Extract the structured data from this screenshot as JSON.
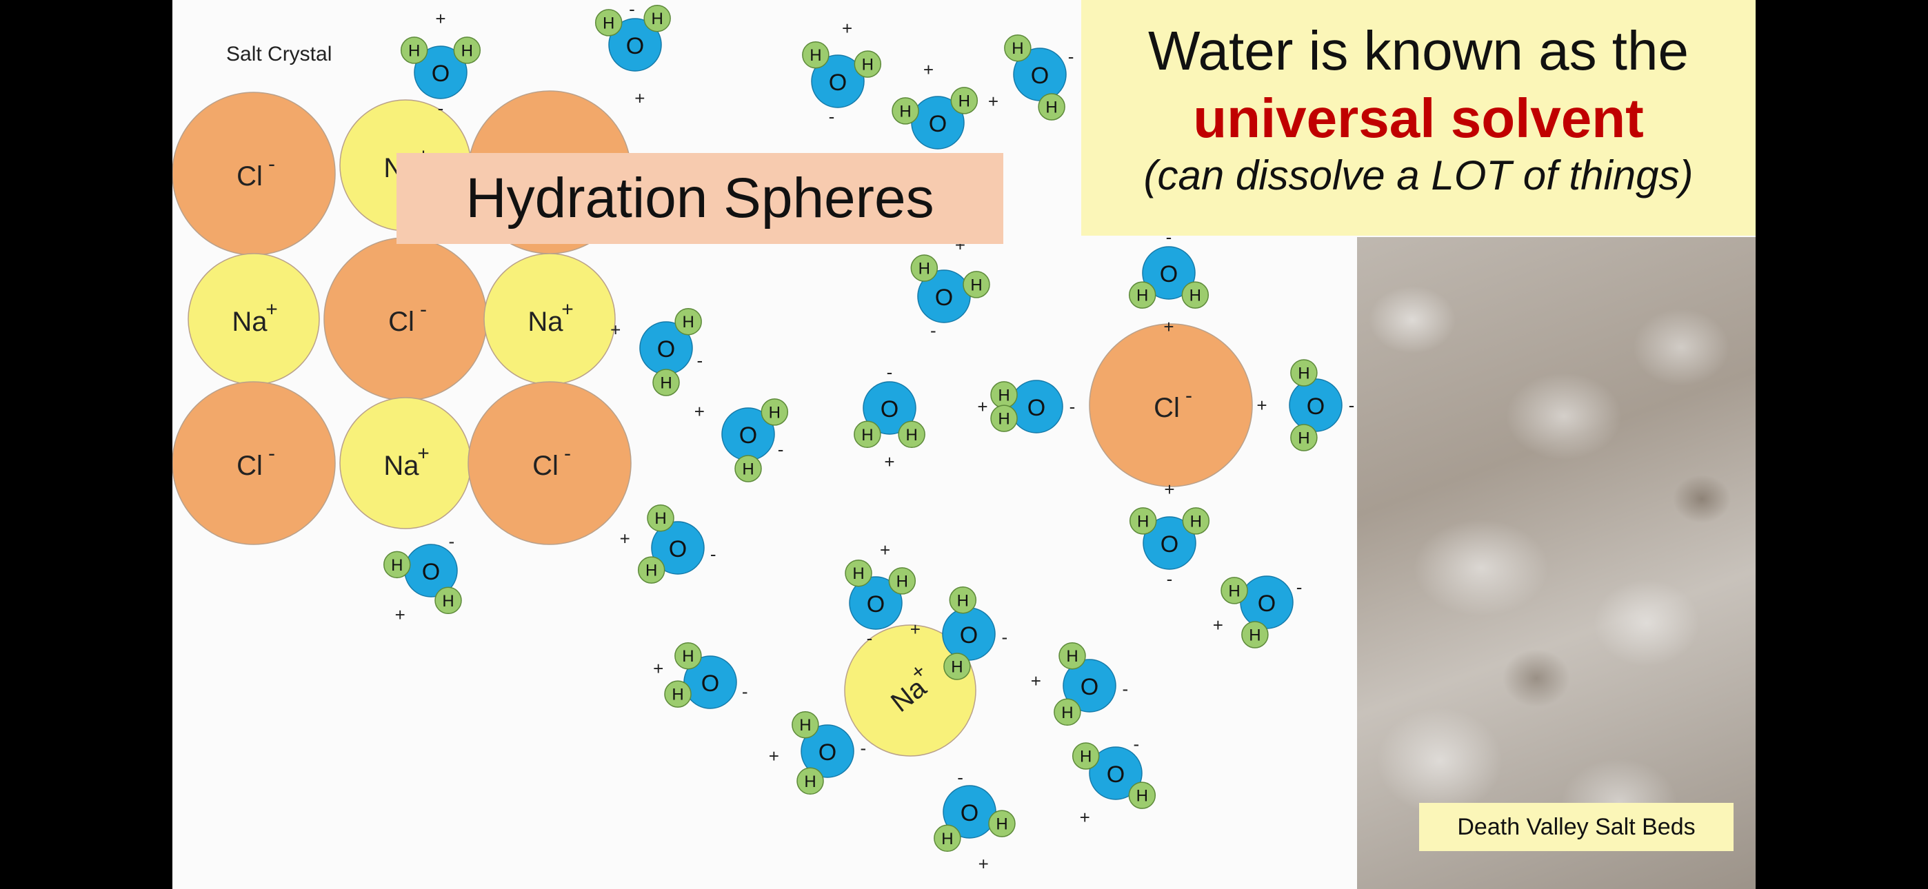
{
  "salt_crystal": {
    "label": "Salt Crystal",
    "ions": [
      {
        "ion": "Cl",
        "charge": "-"
      },
      {
        "ion": "Na",
        "charge": "+"
      },
      {
        "ion": "Cl",
        "charge": "-"
      },
      {
        "ion": "Na",
        "charge": "+"
      },
      {
        "ion": "Cl",
        "charge": "-"
      },
      {
        "ion": "Na",
        "charge": "+"
      },
      {
        "ion": "Cl",
        "charge": "-"
      },
      {
        "ion": "Na",
        "charge": "+"
      },
      {
        "ion": "Cl",
        "charge": "-"
      }
    ]
  },
  "hydration_title": "Hydration Spheres",
  "water_panel": {
    "line1": "Water is known as the",
    "line2": "universal solvent",
    "line3": "(can dissolve a LOT of things)"
  },
  "photo_caption": "Death Valley Salt Beds",
  "hydrated_ions": [
    {
      "ion": "Cl",
      "charge": "-"
    },
    {
      "ion": "Na",
      "charge": "+"
    }
  ],
  "atom_labels": {
    "oxygen": "O",
    "hydrogen": "H",
    "partial_plus": "+",
    "partial_minus": "-"
  },
  "colors": {
    "chloride": "#f2a86a",
    "sodium": "#f8f17a",
    "oxygen": "#1ea6df",
    "hydrogen": "#9ccc6e",
    "title_box": "#f7cbaf",
    "panel": "#fbf6b8",
    "accent_red": "#c00000"
  }
}
